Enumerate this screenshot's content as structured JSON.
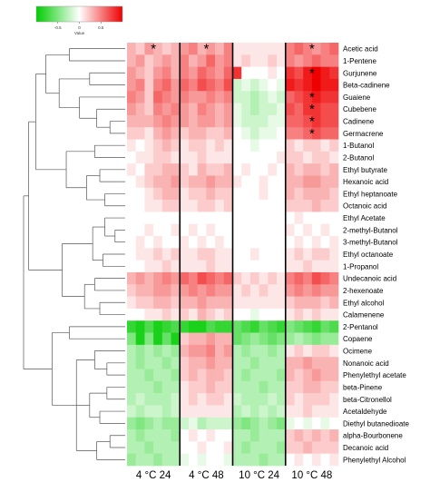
{
  "chart_data": {
    "type": "heatmap",
    "title": "",
    "xlabel": "",
    "ylabel": "",
    "legend": {
      "title": "Value",
      "ticks": [
        "-0.5",
        "0",
        "0.5"
      ],
      "range": [
        -1,
        1
      ],
      "colors": {
        "low": "#00cc00",
        "mid": "#ffffff",
        "high": "#ee0000"
      },
      "placement": "top-left"
    },
    "groups": [
      "4 °C 24",
      "4 °C 48",
      "10 °C 24",
      "10 °C 48"
    ],
    "replicates_per_group": 6,
    "rows": [
      "Acetic acid",
      "1-Pentene",
      "Gurjunene",
      "Beta-cadinene",
      "Guaiene",
      "Cubebene",
      "Cadinene",
      "Germacrene",
      "1-Butanol",
      "2-Butanol",
      "Ethyl butyrate",
      "Hexanoic acid",
      "Ethyl heptanoate",
      "Octanoic acid",
      "Ethyl Acetate",
      "2-methyl-Butanol",
      "3-methyl-Butanol",
      "Ethyl octanoate",
      "1-Propanol",
      "Undecanoic acid",
      "2-hexenoate",
      "Ethyl alcohol",
      "Calamenene",
      "2-Pentanol",
      "Copaene",
      "Ocimene",
      "Nonanoic acid",
      "Phenylethyl acetate",
      "beta-Pinene",
      "beta-Citronellol",
      "Acetaldehyde",
      "Diethyl butanedioate",
      "alpha-Bourbonene",
      "Decanoic acid",
      "Phenylethyl Alcohol"
    ],
    "values": [
      [
        0.3,
        0.2,
        0.4,
        0.3,
        0.2,
        0.3,
        0.4,
        0.5,
        0.3,
        0.4,
        0.3,
        0.5,
        0.1,
        0.1,
        0.1,
        0.1,
        0.1,
        0.1,
        0.5,
        0.6,
        0.5,
        0.4,
        0.5,
        0.6
      ],
      [
        0.3,
        0.4,
        0.2,
        0.3,
        0.4,
        0.3,
        0.5,
        0.3,
        0.4,
        0.6,
        0.4,
        0.5,
        0.1,
        0.2,
        0.1,
        0.1,
        0.2,
        0.1,
        0.5,
        0.4,
        0.5,
        0.6,
        0.5,
        0.5
      ],
      [
        0.4,
        0.3,
        0.2,
        0.4,
        0.5,
        0.3,
        0.5,
        0.4,
        0.6,
        0.5,
        0.4,
        0.6,
        0.8,
        0.0,
        0.0,
        0.0,
        0.1,
        0.0,
        0.8,
        0.7,
        0.9,
        1.0,
        0.9,
        0.8
      ],
      [
        0.4,
        0.5,
        0.2,
        0.5,
        0.6,
        0.4,
        0.6,
        0.5,
        0.7,
        0.6,
        0.5,
        0.7,
        -0.2,
        -0.1,
        -0.2,
        -0.1,
        0.0,
        -0.1,
        0.9,
        0.8,
        0.9,
        1.0,
        0.9,
        0.9
      ],
      [
        0.5,
        0.4,
        0.2,
        0.6,
        0.5,
        0.4,
        0.5,
        0.4,
        0.4,
        0.5,
        0.4,
        0.5,
        -0.2,
        -0.2,
        -0.3,
        -0.2,
        -0.1,
        -0.2,
        0.6,
        0.7,
        0.8,
        0.9,
        0.8,
        0.8
      ],
      [
        0.4,
        0.3,
        0.2,
        0.5,
        0.4,
        0.5,
        0.4,
        0.3,
        0.5,
        0.4,
        0.3,
        0.4,
        -0.1,
        -0.2,
        -0.3,
        -0.2,
        -0.2,
        -0.1,
        0.7,
        0.6,
        0.8,
        0.8,
        0.7,
        0.7
      ],
      [
        0.3,
        0.3,
        0.3,
        0.4,
        0.5,
        0.4,
        0.4,
        0.3,
        0.4,
        0.4,
        0.3,
        0.4,
        -0.1,
        -0.2,
        -0.2,
        -0.2,
        -0.1,
        -0.1,
        0.6,
        0.6,
        0.7,
        0.8,
        0.7,
        0.7
      ],
      [
        0.2,
        0.2,
        0.1,
        0.3,
        0.4,
        0.3,
        0.2,
        0.3,
        0.3,
        0.2,
        0.2,
        0.3,
        0.0,
        -0.1,
        -0.2,
        -0.1,
        -0.1,
        0.0,
        0.5,
        0.5,
        0.6,
        0.7,
        0.6,
        0.6
      ],
      [
        0.1,
        0.0,
        0.1,
        0.2,
        0.3,
        0.2,
        0.1,
        0.2,
        0.2,
        0.1,
        0.2,
        0.1,
        0.0,
        0.0,
        -0.1,
        0.0,
        0.0,
        0.0,
        0.2,
        0.1,
        0.2,
        0.2,
        0.1,
        0.2
      ],
      [
        0.0,
        0.1,
        0.1,
        0.2,
        0.2,
        0.1,
        0.1,
        0.1,
        0.2,
        0.1,
        0.1,
        0.1,
        0.0,
        0.0,
        0.0,
        0.0,
        0.0,
        0.1,
        0.2,
        0.2,
        0.1,
        0.2,
        0.2,
        0.1
      ],
      [
        0.1,
        0.0,
        0.2,
        0.2,
        0.3,
        0.3,
        0.2,
        0.1,
        0.3,
        0.2,
        0.2,
        0.3,
        0.0,
        0.1,
        0.0,
        0.0,
        0.1,
        0.0,
        0.3,
        0.2,
        0.3,
        0.3,
        0.2,
        0.3
      ],
      [
        0.0,
        0.1,
        0.2,
        0.3,
        0.3,
        0.4,
        0.2,
        0.3,
        0.3,
        0.4,
        0.3,
        0.3,
        0.1,
        0.0,
        0.0,
        0.1,
        0.0,
        0.0,
        0.3,
        0.3,
        0.4,
        0.4,
        0.3,
        0.3
      ],
      [
        0.0,
        0.0,
        0.1,
        0.2,
        0.3,
        0.3,
        0.1,
        0.2,
        0.2,
        0.3,
        0.2,
        0.2,
        0.0,
        0.0,
        0.0,
        0.1,
        0.0,
        0.0,
        0.3,
        0.2,
        0.3,
        0.3,
        0.3,
        0.2
      ],
      [
        0.0,
        0.0,
        0.1,
        0.1,
        0.2,
        0.2,
        0.1,
        0.1,
        0.2,
        0.2,
        0.1,
        0.2,
        0.0,
        0.0,
        0.0,
        0.0,
        0.0,
        0.0,
        0.2,
        0.2,
        0.2,
        0.3,
        0.2,
        0.2
      ],
      [
        0.0,
        0.0,
        0.0,
        0.0,
        0.0,
        0.0,
        0.0,
        0.0,
        0.0,
        0.0,
        0.0,
        0.0,
        0.0,
        0.0,
        0.0,
        0.0,
        0.0,
        0.0,
        0.0,
        0.1,
        0.0,
        0.0,
        0.0,
        0.0
      ],
      [
        0.0,
        0.0,
        0.1,
        0.0,
        0.0,
        0.1,
        0.0,
        0.1,
        0.0,
        0.1,
        0.0,
        0.0,
        0.0,
        0.0,
        0.0,
        0.0,
        0.0,
        0.0,
        0.1,
        0.0,
        0.1,
        0.0,
        0.1,
        0.0
      ],
      [
        0.0,
        0.1,
        0.0,
        0.1,
        0.0,
        0.0,
        0.1,
        0.0,
        0.1,
        0.0,
        0.1,
        0.0,
        0.0,
        0.0,
        0.0,
        0.0,
        0.0,
        0.0,
        0.0,
        0.1,
        0.0,
        0.1,
        0.0,
        0.1
      ],
      [
        0.0,
        0.1,
        0.1,
        0.2,
        0.1,
        0.2,
        0.1,
        0.1,
        0.2,
        0.2,
        0.1,
        0.1,
        0.0,
        0.0,
        0.1,
        0.0,
        0.0,
        0.0,
        0.1,
        0.2,
        0.1,
        0.2,
        0.2,
        0.1
      ],
      [
        0.0,
        0.0,
        0.1,
        0.1,
        0.2,
        0.1,
        0.1,
        0.1,
        0.1,
        0.2,
        0.1,
        0.1,
        0.0,
        0.0,
        0.0,
        0.0,
        0.0,
        0.0,
        0.1,
        0.1,
        0.2,
        0.1,
        0.1,
        0.1
      ],
      [
        0.3,
        0.4,
        0.3,
        0.4,
        0.5,
        0.4,
        0.6,
        0.5,
        0.7,
        0.6,
        0.5,
        0.6,
        0.2,
        0.1,
        0.2,
        0.1,
        0.2,
        0.1,
        0.5,
        0.6,
        0.5,
        0.7,
        0.6,
        0.5
      ],
      [
        0.2,
        0.3,
        0.3,
        0.4,
        0.4,
        0.3,
        0.4,
        0.5,
        0.4,
        0.5,
        0.4,
        0.4,
        0.1,
        0.2,
        0.1,
        0.2,
        0.1,
        0.1,
        0.4,
        0.5,
        0.4,
        0.5,
        0.4,
        0.4
      ],
      [
        0.1,
        0.2,
        0.2,
        0.3,
        0.3,
        0.2,
        0.3,
        0.3,
        0.4,
        0.3,
        0.3,
        0.3,
        0.1,
        0.1,
        0.1,
        0.1,
        0.1,
        0.1,
        0.2,
        0.3,
        0.3,
        0.3,
        0.2,
        0.3
      ],
      [
        0.0,
        0.0,
        0.1,
        0.1,
        0.2,
        0.1,
        0.2,
        0.1,
        0.3,
        0.2,
        0.1,
        0.2,
        0.0,
        0.0,
        -0.1,
        0.0,
        0.0,
        0.0,
        0.1,
        0.2,
        0.1,
        0.2,
        0.1,
        0.1
      ],
      [
        -0.8,
        -0.9,
        -0.7,
        -0.9,
        -0.8,
        -0.7,
        -0.8,
        -0.9,
        -0.9,
        -0.7,
        -0.8,
        -0.8,
        -0.6,
        -0.7,
        -0.8,
        -0.6,
        -0.7,
        -0.8,
        -0.5,
        -0.6,
        -0.7,
        -0.8,
        -0.6,
        -0.7
      ],
      [
        -0.5,
        -0.9,
        -0.5,
        -0.9,
        -0.6,
        -0.9,
        0.2,
        0.3,
        0.3,
        0.4,
        0.3,
        0.3,
        -0.6,
        -0.5,
        -0.4,
        -0.5,
        -0.6,
        -0.5,
        -0.4,
        -0.3,
        -0.4,
        -0.5,
        -0.4,
        -0.4
      ],
      [
        -0.3,
        -0.4,
        -0.3,
        -0.4,
        -0.3,
        -0.4,
        0.3,
        0.4,
        0.4,
        0.5,
        0.3,
        0.4,
        -0.3,
        -0.4,
        -0.3,
        -0.3,
        -0.4,
        -0.3,
        0.1,
        0.2,
        0.1,
        0.2,
        0.2,
        0.1
      ],
      [
        -0.3,
        -0.4,
        -0.3,
        -0.3,
        -0.4,
        -0.3,
        0.2,
        0.3,
        0.3,
        0.4,
        0.3,
        0.3,
        -0.3,
        -0.3,
        -0.4,
        -0.3,
        -0.3,
        -0.3,
        0.3,
        0.3,
        0.4,
        0.3,
        0.3,
        0.3
      ],
      [
        -0.3,
        -0.3,
        -0.4,
        -0.3,
        -0.3,
        -0.4,
        0.2,
        0.3,
        0.2,
        0.3,
        0.3,
        0.2,
        -0.3,
        -0.4,
        -0.3,
        -0.3,
        -0.3,
        -0.4,
        0.3,
        0.2,
        0.3,
        0.4,
        0.3,
        0.3
      ],
      [
        -0.3,
        -0.3,
        -0.3,
        -0.4,
        -0.3,
        -0.3,
        0.1,
        0.2,
        0.2,
        0.3,
        0.2,
        0.2,
        -0.3,
        -0.3,
        -0.3,
        -0.4,
        -0.3,
        -0.3,
        0.2,
        0.2,
        0.3,
        0.3,
        0.2,
        0.2
      ],
      [
        -0.3,
        -0.2,
        -0.3,
        -0.3,
        -0.3,
        -0.2,
        0.1,
        0.2,
        0.1,
        0.2,
        0.2,
        0.1,
        -0.2,
        -0.3,
        -0.3,
        -0.3,
        -0.2,
        -0.3,
        0.2,
        0.1,
        0.2,
        0.2,
        0.2,
        0.1
      ],
      [
        -0.2,
        -0.3,
        -0.2,
        -0.2,
        -0.3,
        -0.2,
        0.1,
        0.1,
        0.1,
        0.1,
        0.1,
        0.1,
        -0.3,
        -0.2,
        -0.3,
        -0.2,
        -0.3,
        -0.2,
        0.1,
        0.1,
        0.2,
        0.1,
        0.1,
        0.1
      ],
      [
        -0.4,
        -0.5,
        -0.4,
        -0.3,
        -0.4,
        -0.4,
        -0.2,
        -0.1,
        -0.3,
        -0.2,
        -0.2,
        -0.2,
        -0.4,
        -0.5,
        -0.4,
        -0.3,
        -0.4,
        -0.5,
        -0.1,
        0.0,
        -0.1,
        0.0,
        -0.1,
        0.0
      ],
      [
        -0.3,
        -0.4,
        -0.3,
        -0.3,
        -0.3,
        -0.4,
        0.0,
        0.1,
        0.0,
        0.1,
        0.0,
        0.0,
        -0.3,
        -0.3,
        -0.4,
        -0.3,
        -0.3,
        -0.3,
        0.2,
        0.3,
        0.2,
        0.3,
        0.2,
        0.3
      ],
      [
        -0.3,
        -0.3,
        -0.4,
        -0.3,
        -0.3,
        -0.3,
        0.0,
        0.0,
        0.1,
        0.0,
        0.0,
        0.1,
        -0.3,
        -0.4,
        -0.3,
        -0.3,
        -0.3,
        -0.4,
        0.2,
        0.2,
        0.3,
        0.2,
        0.2,
        0.2
      ],
      [
        -0.4,
        -0.3,
        -0.3,
        -0.4,
        -0.3,
        -0.3,
        -0.1,
        0.0,
        -0.1,
        0.0,
        0.0,
        -0.1,
        -0.3,
        -0.3,
        -0.3,
        -0.4,
        -0.3,
        -0.3,
        0.0,
        0.1,
        0.0,
        0.1,
        0.0,
        0.1
      ]
    ],
    "significance_marks": [
      {
        "row": "Acetic acid",
        "group": "4 °C 24",
        "symbol": "*"
      },
      {
        "row": "Acetic acid",
        "group": "4 °C 48",
        "symbol": "*"
      },
      {
        "row": "Acetic acid",
        "group": "10 °C 48",
        "symbol": "*"
      },
      {
        "row": "Gurjunene",
        "group": "10 °C 48",
        "symbol": "*"
      },
      {
        "row": "Guaiene",
        "group": "10 °C 48",
        "symbol": "*"
      },
      {
        "row": "Cubebene",
        "group": "10 °C 48",
        "symbol": "*"
      },
      {
        "row": "Cadinene",
        "group": "10 °C 48",
        "symbol": "*"
      },
      {
        "row": "Germacrene",
        "group": "10 °C 48",
        "symbol": "*"
      }
    ],
    "dendrogram": "row clustering, left side",
    "grid": false
  }
}
